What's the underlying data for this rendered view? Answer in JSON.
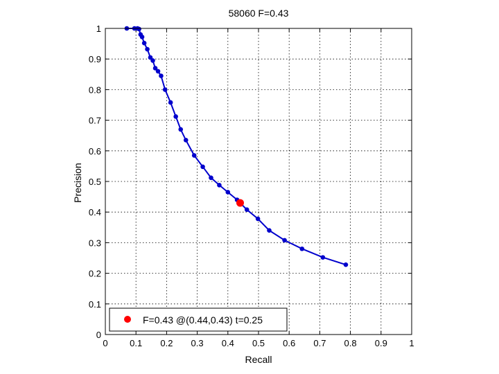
{
  "chart_data": {
    "type": "line",
    "title": "58060 F=0.43",
    "xlabel": "Recall",
    "ylabel": "Precision",
    "xlim": [
      0,
      1
    ],
    "ylim": [
      0,
      1
    ],
    "xticks": [
      "0",
      "0.1",
      "0.2",
      "0.3",
      "0.4",
      "0.5",
      "0.6",
      "0.7",
      "0.8",
      "0.9",
      "1"
    ],
    "yticks": [
      "0",
      "0.1",
      "0.2",
      "0.3",
      "0.4",
      "0.5",
      "0.6",
      "0.7",
      "0.8",
      "0.9",
      "1"
    ],
    "grid": true,
    "series": [
      {
        "color": "#0000cc",
        "marker": "circle",
        "x": [
          0.07,
          0.095,
          0.105,
          0.11,
          0.115,
          0.12,
          0.127,
          0.137,
          0.147,
          0.155,
          0.163,
          0.172,
          0.182,
          0.195,
          0.213,
          0.23,
          0.246,
          0.263,
          0.29,
          0.318,
          0.345,
          0.372,
          0.4,
          0.43,
          0.462,
          0.498,
          0.535,
          0.585,
          0.642,
          0.71,
          0.785
        ],
        "y": [
          1.0,
          1.0,
          1.0,
          0.998,
          0.98,
          0.972,
          0.952,
          0.932,
          0.905,
          0.895,
          0.87,
          0.86,
          0.845,
          0.8,
          0.758,
          0.712,
          0.67,
          0.635,
          0.585,
          0.548,
          0.512,
          0.488,
          0.465,
          0.44,
          0.408,
          0.378,
          0.34,
          0.308,
          0.28,
          0.252,
          0.228
        ]
      }
    ],
    "highlight": {
      "x": 0.44,
      "y": 0.43,
      "color": "#ff0000"
    },
    "legend": {
      "position": "bottom-left",
      "label": "F=0.43 @(0.44,0.43) t=0.25"
    }
  }
}
